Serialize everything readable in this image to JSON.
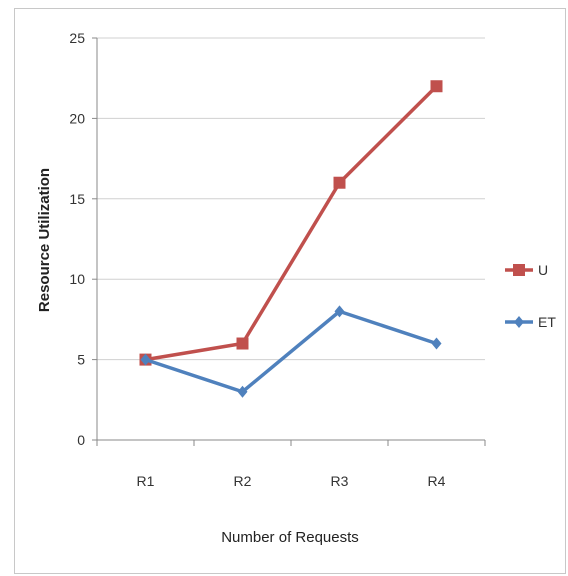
{
  "chart_data": {
    "type": "line",
    "categories": [
      "R1",
      "R2",
      "R3",
      "R4"
    ],
    "series": [
      {
        "name": "U",
        "values": [
          5,
          6,
          16,
          22
        ],
        "color": "#c0504d",
        "marker": "square"
      },
      {
        "name": "ET",
        "values": [
          5,
          3,
          8,
          6
        ],
        "color": "#4f81bd",
        "marker": "diamond"
      }
    ],
    "xlabel": "Number of Requests",
    "ylabel": "Resource Utilization",
    "ylim": [
      0,
      25
    ],
    "yticks": [
      0,
      5,
      10,
      15,
      20,
      25
    ],
    "grid": true,
    "legend": "right"
  }
}
